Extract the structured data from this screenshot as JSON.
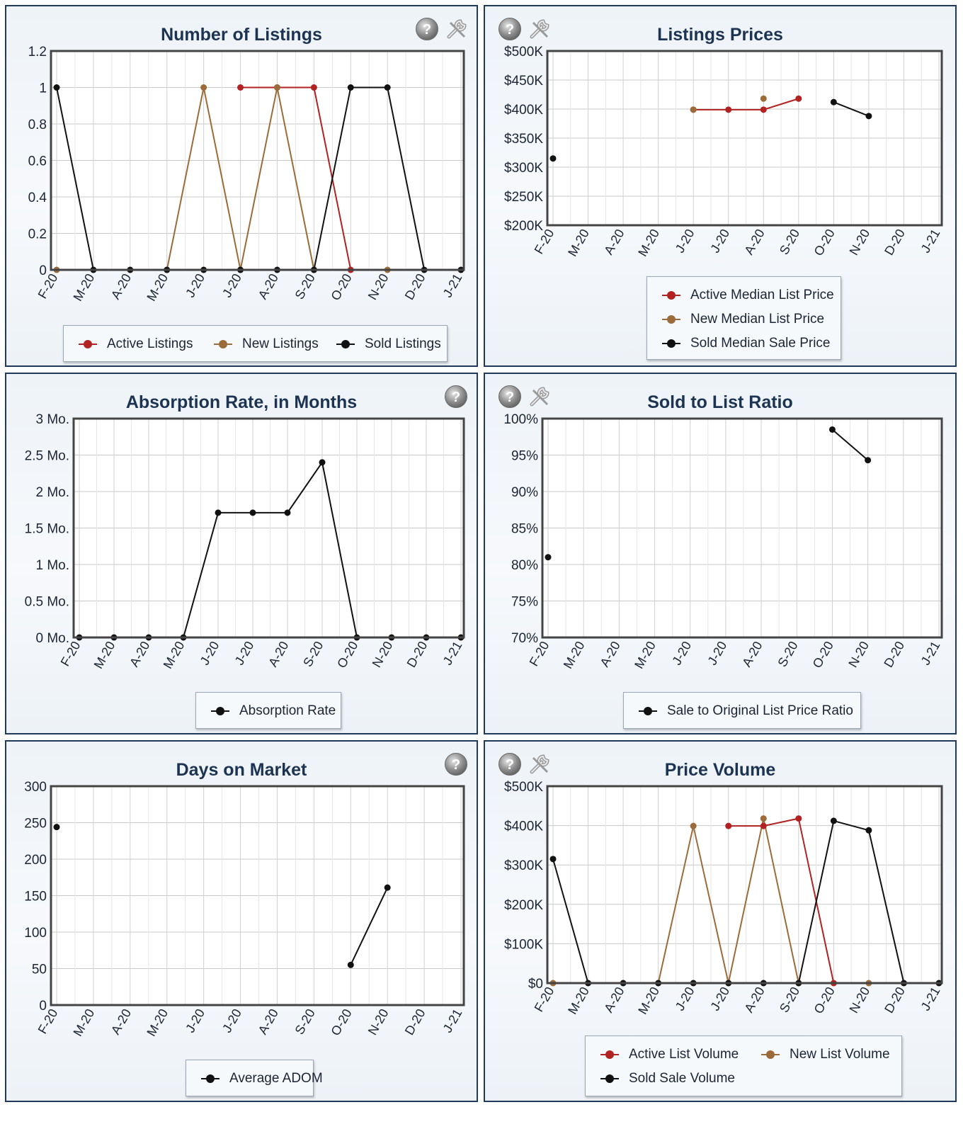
{
  "charts": [
    {
      "id": "listings",
      "title": "Number of Listings",
      "has_help": true,
      "has_tool": true,
      "icons": [
        "help-icon",
        "wrench-icon"
      ],
      "legend_items": [
        "Active Listings",
        "New Listings",
        "Sold Listings"
      ],
      "chart_data": {
        "type": "line",
        "title": "Number of Listings",
        "categories": [
          "F-20",
          "M-20",
          "A-20",
          "M-20",
          "J-20",
          "J-20",
          "A-20",
          "S-20",
          "O-20",
          "N-20",
          "D-20",
          "J-21"
        ],
        "y_ticks": [
          "1.2",
          "1",
          "0.8",
          "0.6",
          "0.4",
          "0.2",
          "0"
        ],
        "ylim": [
          0,
          1.2
        ],
        "grid": true,
        "series": [
          {
            "name": "Active Listings",
            "color": "#b22222",
            "values": [
              null,
              null,
              null,
              null,
              null,
              1,
              1,
              1,
              0,
              null,
              null,
              null
            ]
          },
          {
            "name": "New Listings",
            "color": "#9c6b3a",
            "values": [
              0,
              null,
              null,
              0,
              1,
              0,
              1,
              0,
              null,
              0,
              null,
              null
            ]
          },
          {
            "name": "Sold Listings",
            "color": "#111111",
            "values": [
              1,
              0,
              0,
              0,
              0,
              0,
              0,
              0,
              1,
              1,
              0,
              0
            ]
          }
        ]
      }
    },
    {
      "id": "prices",
      "title": "Listings Prices",
      "has_help": true,
      "has_tool": true,
      "icons": [
        "help-icon",
        "wrench-icon"
      ],
      "legend_items": [
        "Active Median List Price",
        "New Median List Price",
        "Sold Median Sale Price"
      ],
      "chart_data": {
        "type": "line",
        "title": "Listings Prices",
        "categories": [
          "F-20",
          "M-20",
          "A-20",
          "M-20",
          "J-20",
          "J-20",
          "A-20",
          "S-20",
          "O-20",
          "N-20",
          "D-20",
          "J-21"
        ],
        "y_ticks": [
          "$500K",
          "$450K",
          "$400K",
          "$350K",
          "$300K",
          "$250K",
          "$200K"
        ],
        "ylim": [
          200000,
          500000
        ],
        "grid": true,
        "series": [
          {
            "name": "Active Median List Price",
            "color": "#b22222",
            "values": [
              null,
              null,
              null,
              null,
              399000,
              399000,
              399000,
              418000,
              null,
              null,
              null,
              null
            ]
          },
          {
            "name": "New Median List Price",
            "color": "#9c6b3a",
            "values": [
              null,
              null,
              null,
              null,
              399000,
              null,
              418000,
              null,
              null,
              null,
              null,
              null
            ]
          },
          {
            "name": "Sold Median Sale Price",
            "color": "#111111",
            "values": [
              315000,
              null,
              null,
              null,
              null,
              null,
              null,
              null,
              412000,
              388000,
              null,
              null
            ]
          }
        ]
      }
    },
    {
      "id": "absorption",
      "title": "Absorption Rate, in Months",
      "has_help": true,
      "has_tool": false,
      "icons": [
        "help-icon"
      ],
      "legend_items": [
        "Absorption Rate"
      ],
      "chart_data": {
        "type": "line",
        "title": "Absorption Rate, in Months",
        "categories": [
          "F-20",
          "M-20",
          "A-20",
          "M-20",
          "J-20",
          "J-20",
          "A-20",
          "S-20",
          "O-20",
          "N-20",
          "D-20",
          "J-21"
        ],
        "y_ticks": [
          "3 Mo.",
          "2.5 Mo.",
          "2 Mo.",
          "1.5 Mo.",
          "1 Mo.",
          "0.5 Mo.",
          "0 Mo."
        ],
        "ylim": [
          0,
          3
        ],
        "grid": true,
        "series": [
          {
            "name": "Absorption Rate",
            "color": "#111111",
            "values": [
              0,
              0,
              0,
              0,
              1.71,
              1.71,
              1.71,
              2.4,
              0,
              0,
              0,
              0
            ]
          }
        ]
      }
    },
    {
      "id": "ratio",
      "title": "Sold to List Ratio",
      "has_help": true,
      "has_tool": true,
      "icons": [
        "help-icon",
        "wrench-icon"
      ],
      "legend_items": [
        "Sale to Original List Price Ratio"
      ],
      "chart_data": {
        "type": "line",
        "title": "Sold to List Ratio",
        "categories": [
          "F-20",
          "M-20",
          "A-20",
          "M-20",
          "J-20",
          "J-20",
          "A-20",
          "S-20",
          "O-20",
          "N-20",
          "D-20",
          "J-21"
        ],
        "y_ticks": [
          "100%",
          "95%",
          "90%",
          "85%",
          "80%",
          "75%",
          "70%"
        ],
        "ylim": [
          70,
          100
        ],
        "grid": true,
        "series": [
          {
            "name": "Sale to Original List Price Ratio",
            "color": "#111111",
            "values": [
              81,
              null,
              null,
              null,
              null,
              null,
              null,
              null,
              98.5,
              94.3,
              null,
              null
            ]
          }
        ]
      }
    },
    {
      "id": "dom",
      "title": "Days on Market",
      "has_help": true,
      "has_tool": false,
      "icons": [
        "help-icon"
      ],
      "legend_items": [
        "Average ADOM"
      ],
      "chart_data": {
        "type": "line",
        "title": "Days on Market",
        "categories": [
          "F-20",
          "M-20",
          "A-20",
          "M-20",
          "J-20",
          "J-20",
          "A-20",
          "S-20",
          "O-20",
          "N-20",
          "D-20",
          "J-21"
        ],
        "y_ticks": [
          "300",
          "250",
          "200",
          "150",
          "100",
          "50",
          "0"
        ],
        "ylim": [
          0,
          300
        ],
        "grid": true,
        "series": [
          {
            "name": "Average ADOM",
            "color": "#111111",
            "values": [
              244,
              null,
              null,
              null,
              null,
              null,
              null,
              null,
              55,
              161,
              null,
              null
            ]
          }
        ]
      }
    },
    {
      "id": "volume",
      "title": "Price Volume",
      "has_help": true,
      "has_tool": true,
      "icons": [
        "help-icon",
        "wrench-icon"
      ],
      "legend_items": [
        "Active List Volume",
        "New List Volume",
        "Sold Sale Volume"
      ],
      "chart_data": {
        "type": "line",
        "title": "Price Volume",
        "categories": [
          "F-20",
          "M-20",
          "A-20",
          "M-20",
          "J-20",
          "J-20",
          "A-20",
          "S-20",
          "O-20",
          "N-20",
          "D-20",
          "J-21"
        ],
        "y_ticks": [
          "$500K",
          "$400K",
          "$300K",
          "$200K",
          "$100K",
          "$0"
        ],
        "ylim": [
          0,
          500000
        ],
        "grid": true,
        "series": [
          {
            "name": "Active List Volume",
            "color": "#b22222",
            "values": [
              null,
              null,
              null,
              null,
              null,
              399000,
              399000,
              418000,
              0,
              null,
              null,
              null
            ]
          },
          {
            "name": "New List Volume",
            "color": "#9c6b3a",
            "values": [
              0,
              null,
              null,
              0,
              399000,
              0,
              418000,
              0,
              null,
              0,
              null,
              null
            ]
          },
          {
            "name": "Sold Sale Volume",
            "color": "#111111",
            "values": [
              315000,
              0,
              0,
              0,
              0,
              0,
              0,
              0,
              412000,
              388000,
              0,
              0
            ]
          }
        ]
      }
    }
  ]
}
